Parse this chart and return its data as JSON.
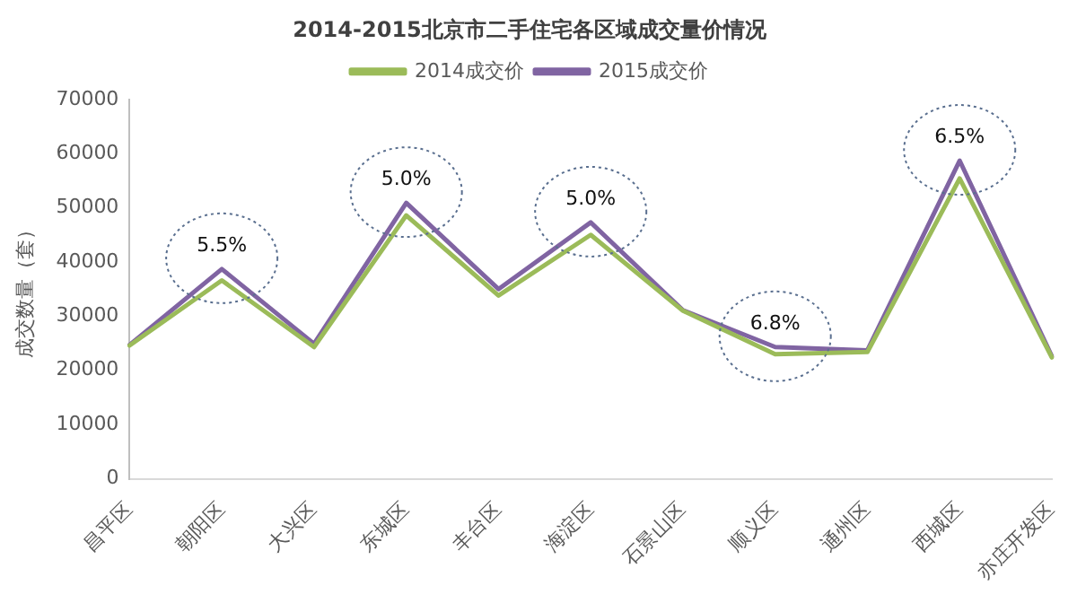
{
  "chart_data": {
    "type": "line",
    "title": "2014-2015北京市二手住宅各区域成交量价情况",
    "ylabel": "成交数量（套）",
    "categories": [
      "昌平区",
      "朝阳区",
      "大兴区",
      "东城区",
      "丰台区",
      "海淀区",
      "石景山区",
      "顺义区",
      "通州区",
      "西城区",
      "亦庄开发区"
    ],
    "series": [
      {
        "name": "2014成交价",
        "color": "#9bbb59",
        "values": [
          24600,
          36600,
          24300,
          48600,
          33800,
          45000,
          31000,
          23000,
          23400,
          55400,
          22400
        ]
      },
      {
        "name": "2015成交价",
        "color": "#8064a2",
        "values": [
          24700,
          38700,
          24900,
          50900,
          35000,
          47300,
          31100,
          24300,
          23700,
          58700,
          22600
        ]
      }
    ],
    "ylim": [
      0,
      70000
    ],
    "yticks": [
      0,
      10000,
      20000,
      30000,
      40000,
      50000,
      60000,
      70000
    ],
    "grid": false,
    "legend": "top",
    "marker": "none",
    "line_style": "solid",
    "annotations": [
      {
        "text": "5.5%",
        "x": "朝阳区",
        "y": 38700
      },
      {
        "text": "5.0%",
        "x": "东城区",
        "y": 50900
      },
      {
        "text": "5.0%",
        "x": "海淀区",
        "y": 47300
      },
      {
        "text": "6.8%",
        "x": "顺义区",
        "y": 24300
      },
      {
        "text": "6.5%",
        "x": "西城区",
        "y": 58700
      }
    ]
  }
}
